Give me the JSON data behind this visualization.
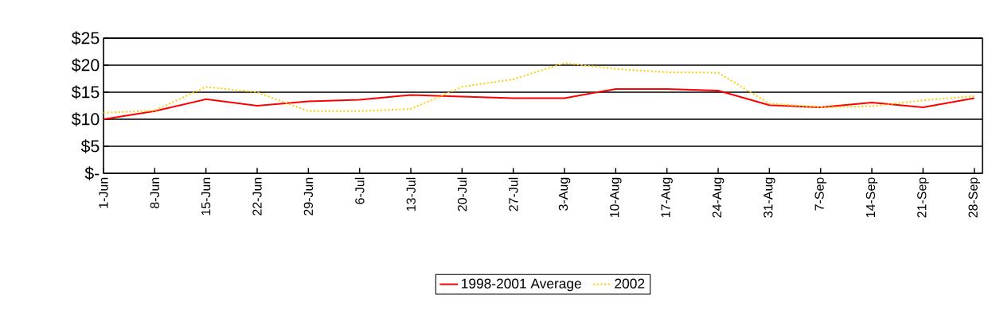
{
  "chart_data": {
    "type": "line",
    "categories": [
      "1-Jun",
      "8-Jun",
      "15-Jun",
      "22-Jun",
      "29-Jun",
      "6-Jul",
      "13-Jul",
      "20-Jul",
      "27-Jul",
      "3-Aug",
      "10-Aug",
      "17-Aug",
      "24-Aug",
      "31-Aug",
      "7-Sep",
      "14-Sep",
      "21-Sep",
      "28-Sep"
    ],
    "series": [
      {
        "name": "1998-2001 Average",
        "color": "#ff0000",
        "line_style": "solid",
        "values": [
          10.0,
          11.5,
          13.7,
          12.5,
          13.3,
          13.6,
          14.5,
          14.2,
          13.9,
          13.9,
          15.6,
          15.6,
          15.3,
          12.6,
          12.2,
          13.1,
          12.2,
          13.9
        ]
      },
      {
        "name": "2002",
        "color": "#ffcc00",
        "line_style": "dotted",
        "values": [
          11.2,
          11.6,
          16.0,
          15.0,
          11.5,
          11.5,
          11.9,
          16.0,
          17.4,
          20.4,
          19.3,
          18.7,
          18.6,
          12.9,
          12.2,
          12.4,
          13.5,
          14.3
        ]
      }
    ],
    "ylim": [
      0,
      25
    ],
    "yticks": [
      {
        "value": 0,
        "label": "$-"
      },
      {
        "value": 5,
        "label": "$5"
      },
      {
        "value": 10,
        "label": "$10"
      },
      {
        "value": 15,
        "label": "$15"
      },
      {
        "value": 20,
        "label": "$20"
      },
      {
        "value": 25,
        "label": "$25"
      }
    ],
    "grid": "y",
    "legend": "bottom",
    "marker": "none"
  }
}
